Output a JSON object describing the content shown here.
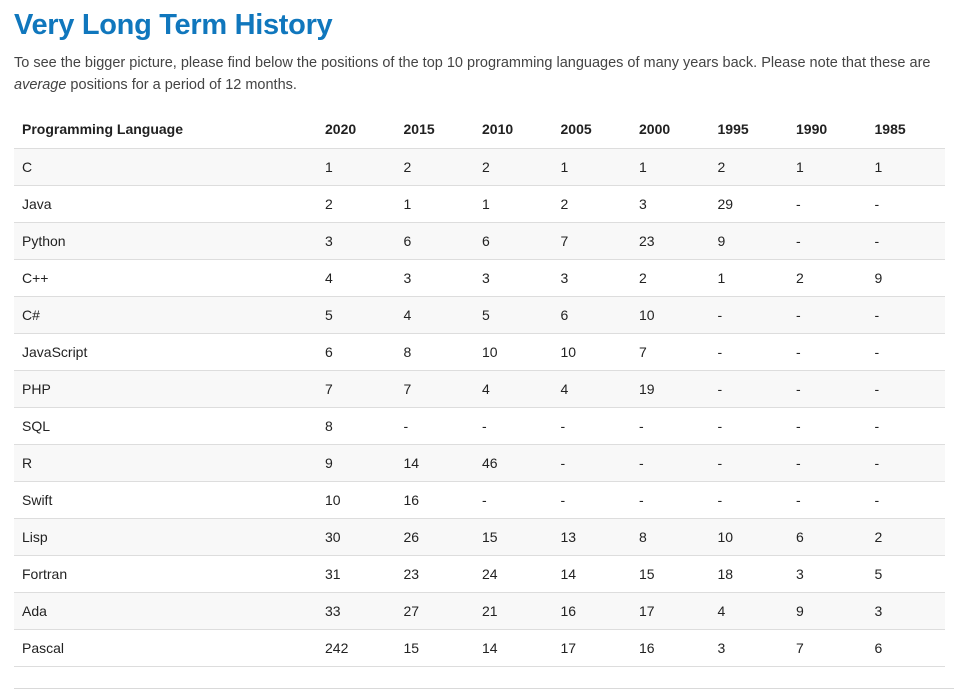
{
  "page": {
    "title": "Very Long Term History",
    "intro_before_italic": "To see the bigger picture, please find below the positions of the top 10 programming languages of many years back. Please note that these are ",
    "intro_italic": "average",
    "intro_after_italic": " positions for a period of 12 months."
  },
  "table": {
    "first_column_header": "Programming Language",
    "year_headers": [
      "2020",
      "2015",
      "2010",
      "2005",
      "2000",
      "1995",
      "1990",
      "1985"
    ],
    "rows": [
      {
        "language": "C",
        "positions": [
          "1",
          "2",
          "2",
          "1",
          "1",
          "2",
          "1",
          "1"
        ]
      },
      {
        "language": "Java",
        "positions": [
          "2",
          "1",
          "1",
          "2",
          "3",
          "29",
          "-",
          "-"
        ]
      },
      {
        "language": "Python",
        "positions": [
          "3",
          "6",
          "6",
          "7",
          "23",
          "9",
          "-",
          "-"
        ]
      },
      {
        "language": "C++",
        "positions": [
          "4",
          "3",
          "3",
          "3",
          "2",
          "1",
          "2",
          "9"
        ]
      },
      {
        "language": "C#",
        "positions": [
          "5",
          "4",
          "5",
          "6",
          "10",
          "-",
          "-",
          "-"
        ]
      },
      {
        "language": "JavaScript",
        "positions": [
          "6",
          "8",
          "10",
          "10",
          "7",
          "-",
          "-",
          "-"
        ]
      },
      {
        "language": "PHP",
        "positions": [
          "7",
          "7",
          "4",
          "4",
          "19",
          "-",
          "-",
          "-"
        ]
      },
      {
        "language": "SQL",
        "positions": [
          "8",
          "-",
          "-",
          "-",
          "-",
          "-",
          "-",
          "-"
        ]
      },
      {
        "language": "R",
        "positions": [
          "9",
          "14",
          "46",
          "-",
          "-",
          "-",
          "-",
          "-"
        ]
      },
      {
        "language": "Swift",
        "positions": [
          "10",
          "16",
          "-",
          "-",
          "-",
          "-",
          "-",
          "-"
        ]
      },
      {
        "language": "Lisp",
        "positions": [
          "30",
          "26",
          "15",
          "13",
          "8",
          "10",
          "6",
          "2"
        ]
      },
      {
        "language": "Fortran",
        "positions": [
          "31",
          "23",
          "24",
          "14",
          "15",
          "18",
          "3",
          "5"
        ]
      },
      {
        "language": "Ada",
        "positions": [
          "33",
          "27",
          "21",
          "16",
          "17",
          "4",
          "9",
          "3"
        ]
      },
      {
        "language": "Pascal",
        "positions": [
          "242",
          "15",
          "14",
          "17",
          "16",
          "3",
          "7",
          "6"
        ]
      }
    ]
  },
  "colors": {
    "title_blue": "#1077bd",
    "row_stripe": "#f8f8f8",
    "row_border": "#dddddd",
    "divider": "#d9d9d9",
    "table_text": "#222222",
    "body_text": "#444444"
  }
}
